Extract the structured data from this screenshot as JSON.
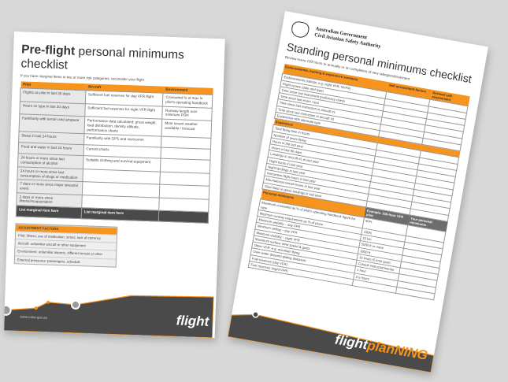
{
  "back_page": {
    "title_bold": "Pre-flight",
    "title_rest": "personal minimums checklist",
    "subtitle": "If you have marginal items in two or more risk categories, reconsider your flight",
    "columns": [
      "Pilot",
      "Aircraft",
      "Environment"
    ],
    "rows": [
      [
        "Flights as pilot in last 30 days",
        "Sufficient fuel reserves for day VFR flight",
        "Crosswind % of max in pilot's operating handbook"
      ],
      [
        "Hours on type in last 30 days",
        "Sufficient fuel reserves for night VFR flight",
        "Runway length over minimum POH"
      ],
      [
        "Familiarity with terrain and airspace",
        "Performance data calculated: gross weight, load distribution, density altitude, performance charts",
        "Most recent weather available / forecast"
      ],
      [
        "Sleep in last 24 hours",
        "Familiarity with GPS and nav/comm",
        ""
      ],
      [
        "Food and water in last 24 hours",
        "Current charts",
        ""
      ],
      [
        "24 hours or more since last consumption of alcohol",
        "Suitable clothing and survival equipment",
        ""
      ],
      [
        "24 hours or more since last consumption of drugs or medication",
        "",
        ""
      ],
      [
        "7 days or more since major stressful event",
        "",
        ""
      ],
      [
        "2 days or more since illness/incapacitation",
        "",
        ""
      ]
    ],
    "marginal_row": [
      "List marginal item here",
      "List marginal item here",
      ""
    ],
    "adjustment": {
      "title": "ADJUSTMENT FACTORS",
      "items": [
        "Pilot: illness, use of medication, stress, lack of currency",
        "Aircraft: unfamiliar aircraft or other equipment",
        "Environment: unfamiliar airports, different terrain or other",
        "External pressures: passengers, schedule"
      ]
    },
    "url": "www.casa.gov.au",
    "brand_a": "flight"
  },
  "front_page": {
    "gov_line1": "Australian Government",
    "gov_line2": "Civil Aviation Safety Authority",
    "title": "Standing personal minimums checklist",
    "subtitle": "Review every 100 hours or annually or on completion of new rating/endorsement",
    "section1": "Endorsements, training & experience summary",
    "section1_cols": [
      "Self assessment factors",
      "Revised self-assessment"
    ],
    "section1_rows": [
      "Endorsements (ratings, e.g. night VFR, NVFR)",
      "Flight review (date and type)",
      "Time since last instrument proficiency check",
      "Time since last exam / test",
      "Time since last instruction in aircraft #1",
      "Time since last instruction in aircraft #2",
      "Experience with alternate type"
    ],
    "section2": "Experience",
    "section2_rows": [
      "Total flying time in hours",
      "Number of years flying",
      "Hours in the last year",
      "Hours in last 90 days",
      "Landings in aircraft #1 in last year",
      "Flight hours in last year",
      "Night landings in last year",
      "Instrument flight hours in last year",
      "Mountainous terrain hours in last year",
      "Short field or grass landings in last year"
    ],
    "section3": "Personal minimums",
    "section3_cols": [
      "Example: 100-hour VFR pilot",
      "Your personal minimums"
    ],
    "section3_rows": [
      [
        "Maximum crosswind as % of pilot's operating handbook figure for type",
        "50%",
        ""
      ],
      [
        "Minimum runway requirement as % of place",
        "100%",
        ""
      ],
      [
        "Minimum visibility – day VFR",
        "10 km",
        ""
      ],
      [
        "Minimum ceiling – day VFR",
        "5000 ft or more",
        ""
      ],
      [
        "Minimum visibility – night VFR",
        "3000 ft",
        ""
      ],
      [
        "Maximum surface wind speed & gusts",
        "15 knots (5 knot gust)",
        ""
      ],
      [
        "Other VFR: e.g. mountain flying",
        "Consult instructor/mentor",
        ""
      ],
      [
        "Over water (beyond gliding distance)",
        "1 hour",
        ""
      ],
      [
        "Fuel reserves (day VFR)",
        "1½ hours",
        ""
      ],
      [
        "Fuel reserves (night VFR)",
        "",
        ""
      ]
    ],
    "url": "www.casa.gov.au",
    "brand_a": "flight",
    "brand_b": "planNING"
  },
  "colors": {
    "accent": "#f7941d",
    "dark": "#4a4a4a",
    "background": "#d8d8d8"
  }
}
